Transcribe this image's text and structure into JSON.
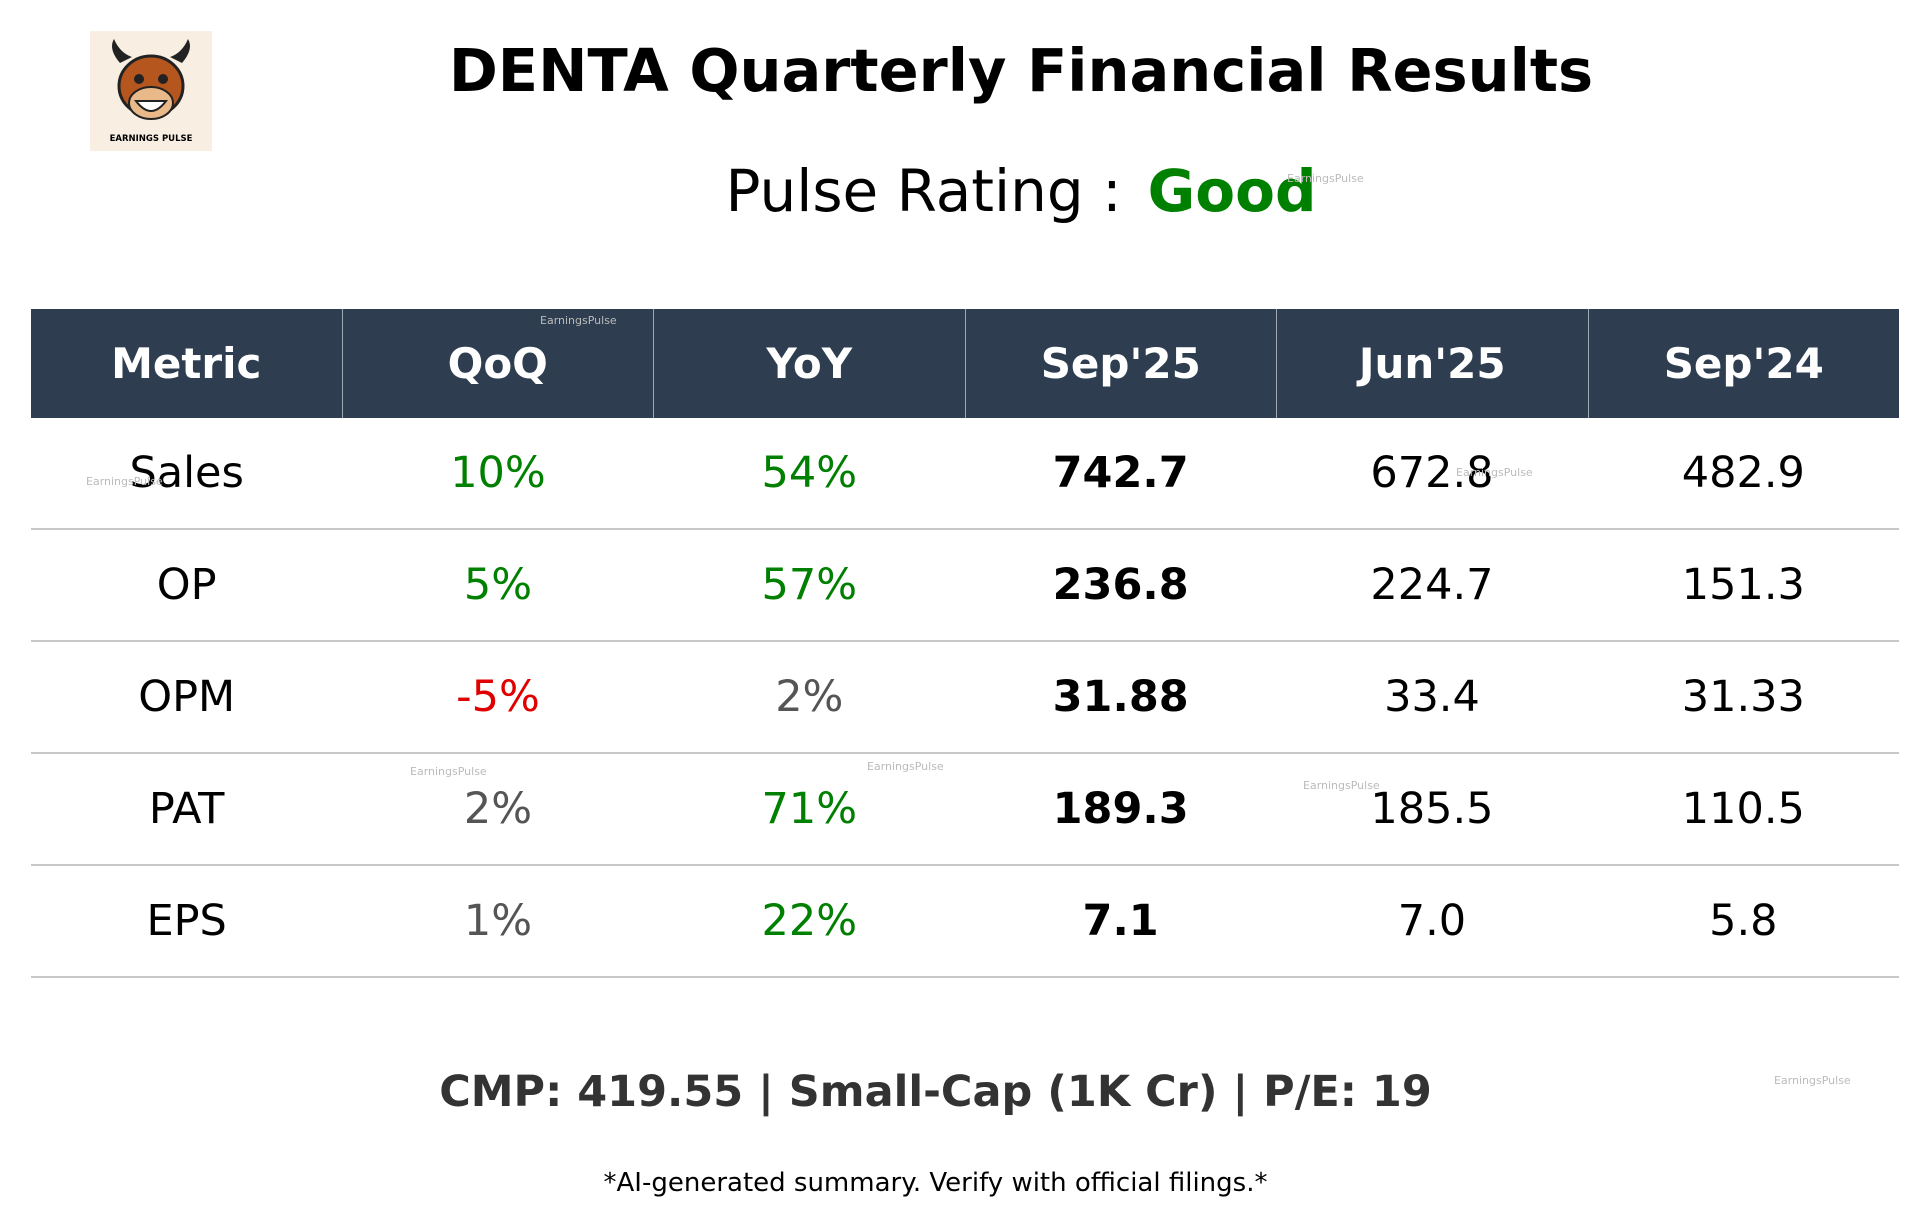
{
  "header": {
    "title": "DENTA Quarterly Financial Results",
    "rating_label": "Pulse Rating :",
    "rating": "Good",
    "rating_color": "#008000",
    "logo_text": "EARNINGS PULSE"
  },
  "table": {
    "columns": [
      "Metric",
      "QoQ",
      "YoY",
      "Sep'25",
      "Jun'25",
      "Sep'24"
    ],
    "rows": [
      {
        "cells": [
          "Sales",
          "10%",
          "54%",
          "742.7",
          "672.8",
          "482.9"
        ],
        "colors": [
          "#000000",
          "#008000",
          "#008000",
          "#000000",
          "#000000",
          "#000000"
        ]
      },
      {
        "cells": [
          "OP",
          "5%",
          "57%",
          "236.8",
          "224.7",
          "151.3"
        ],
        "colors": [
          "#000000",
          "#008000",
          "#008000",
          "#000000",
          "#000000",
          "#000000"
        ]
      },
      {
        "cells": [
          "OPM",
          "-5%",
          "2%",
          "31.88",
          "33.4",
          "31.33"
        ],
        "colors": [
          "#000000",
          "#e00000",
          "#555555",
          "#000000",
          "#000000",
          "#000000"
        ]
      },
      {
        "cells": [
          "PAT",
          "2%",
          "71%",
          "189.3",
          "185.5",
          "110.5"
        ],
        "colors": [
          "#000000",
          "#555555",
          "#008000",
          "#000000",
          "#000000",
          "#000000"
        ]
      },
      {
        "cells": [
          "EPS",
          "1%",
          "22%",
          "7.1",
          "7.0",
          "5.8"
        ],
        "colors": [
          "#000000",
          "#555555",
          "#008000",
          "#000000",
          "#000000",
          "#000000"
        ]
      }
    ]
  },
  "footer": {
    "summary": "CMP: 419.55 | Small-Cap (1K Cr) | P/E: 19",
    "disclaimer": "*AI-generated summary. Verify with official filings.*"
  },
  "watermark": "EarningsPulse"
}
